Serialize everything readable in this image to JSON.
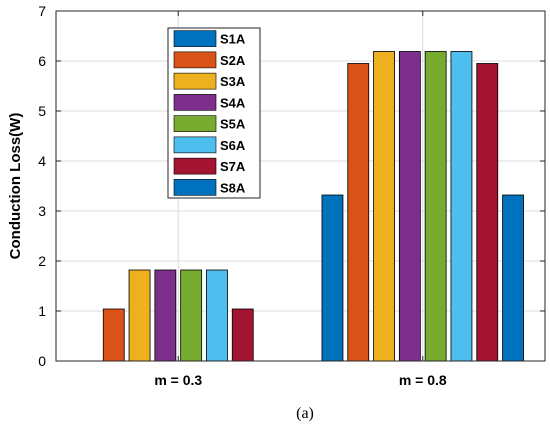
{
  "chart_data": {
    "type": "bar",
    "categories": [
      "m = 0.3",
      "m = 0.8"
    ],
    "series": [
      {
        "name": "S1A",
        "color": "#0072BD",
        "values": [
          0,
          3.32
        ]
      },
      {
        "name": "S2A",
        "color": "#D95319",
        "values": [
          1.04,
          5.95
        ]
      },
      {
        "name": "S3A",
        "color": "#EDB120",
        "values": [
          1.82,
          6.19
        ]
      },
      {
        "name": "S4A",
        "color": "#7E2F8E",
        "values": [
          1.82,
          6.19
        ]
      },
      {
        "name": "S5A",
        "color": "#77AC30",
        "values": [
          1.82,
          6.19
        ]
      },
      {
        "name": "S6A",
        "color": "#4DBEEE",
        "values": [
          1.82,
          6.19
        ]
      },
      {
        "name": "S7A",
        "color": "#A2142F",
        "values": [
          1.04,
          5.95
        ]
      },
      {
        "name": "S8A",
        "color": "#0072BD",
        "values": [
          0,
          3.32
        ]
      }
    ],
    "ylabel": "Conduction Loss(W)",
    "xlabel": "",
    "ylim": [
      0,
      7
    ],
    "yticks": [
      0,
      1,
      2,
      3,
      4,
      5,
      6,
      7
    ],
    "grid": true,
    "legend_position": "top-center"
  },
  "caption": "(a)"
}
